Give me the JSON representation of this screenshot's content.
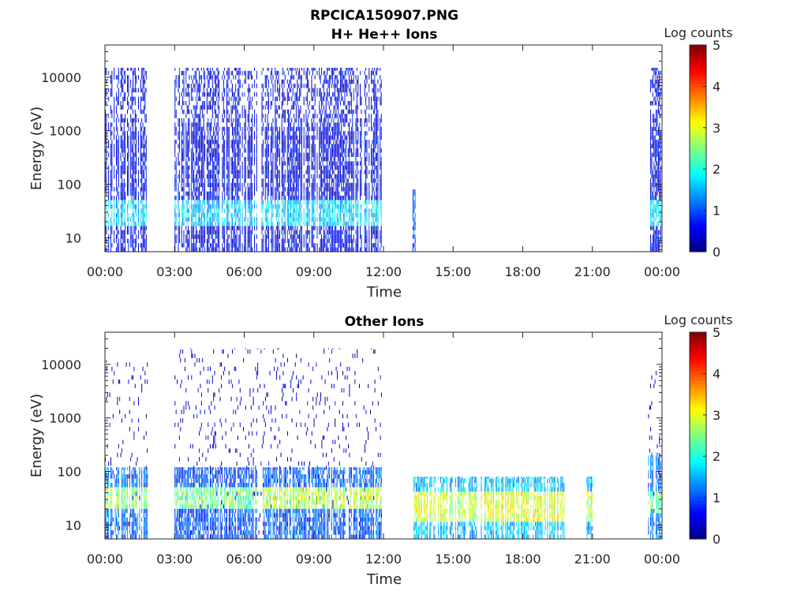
{
  "figure": {
    "title": "RPCICA150907.PNG"
  },
  "chart_data": [
    {
      "type": "heatmap",
      "title": "H+ He++ Ions",
      "xlabel": "Time",
      "ylabel": "Energy (eV)",
      "x_scale": "time",
      "x_range_hours": [
        0,
        24
      ],
      "x_ticks": [
        "00:00",
        "03:00",
        "06:00",
        "09:00",
        "12:00",
        "15:00",
        "18:00",
        "21:00",
        "00:00"
      ],
      "y_scale": "log",
      "y_range": [
        5.5,
        40000
      ],
      "y_ticks": [
        "10",
        "100",
        "1000",
        "10000"
      ],
      "colorbar": {
        "label": "Log counts",
        "range": [
          0,
          5
        ],
        "ticks": [
          "0",
          "1",
          "2",
          "3",
          "4",
          "5"
        ],
        "colormap": "jet"
      },
      "regions": [
        {
          "t0": 0.0,
          "t1": 1.85,
          "emax": 15000,
          "level": 0.55,
          "peak_level": 1.7,
          "peak_energy": [
            15,
            45
          ]
        },
        {
          "t0": 3.0,
          "t1": 6.55,
          "emax": 15000,
          "level": 0.55,
          "peak_level": 1.6,
          "peak_energy": [
            15,
            45
          ]
        },
        {
          "t0": 6.7,
          "t1": 11.9,
          "emax": 15000,
          "level": 0.55,
          "peak_level": 1.7,
          "peak_energy": [
            15,
            45
          ]
        },
        {
          "t0": 13.25,
          "t1": 13.35,
          "emax": 80,
          "level": 1.0,
          "peak_level": 1.2,
          "peak_energy": [
            10,
            40
          ]
        },
        {
          "t0": 23.4,
          "t1": 23.95,
          "emax": 15000,
          "level": 0.6,
          "peak_level": 1.8,
          "peak_energy": [
            15,
            45
          ]
        }
      ]
    },
    {
      "type": "heatmap",
      "title": "Other Ions",
      "xlabel": "Time",
      "ylabel": "Energy (eV)",
      "x_scale": "time",
      "x_range_hours": [
        0,
        24
      ],
      "x_ticks": [
        "00:00",
        "03:00",
        "06:00",
        "09:00",
        "12:00",
        "15:00",
        "18:00",
        "21:00",
        "00:00"
      ],
      "y_scale": "log",
      "y_range": [
        5.5,
        40000
      ],
      "y_ticks": [
        "10",
        "100",
        "1000",
        "10000"
      ],
      "colorbar": {
        "label": "Log counts",
        "range": [
          0,
          5
        ],
        "ticks": [
          "0",
          "1",
          "2",
          "3",
          "4",
          "5"
        ],
        "colormap": "jet"
      },
      "regions": [
        {
          "t0": 0.0,
          "t1": 1.85,
          "emax": 120,
          "level": 1.2,
          "peak_level": 2.6,
          "peak_energy": [
            20,
            45
          ]
        },
        {
          "t0": 3.0,
          "t1": 6.55,
          "emax": 120,
          "level": 1.0,
          "peak_level": 2.4,
          "peak_energy": [
            20,
            45
          ]
        },
        {
          "t0": 6.7,
          "t1": 11.9,
          "emax": 120,
          "level": 1.1,
          "peak_level": 2.8,
          "peak_energy": [
            20,
            45
          ]
        },
        {
          "t0": 13.3,
          "t1": 14.75,
          "emax": 80,
          "level": 1.6,
          "peak_level": 2.9,
          "peak_energy": [
            10,
            40
          ]
        },
        {
          "t0": 14.85,
          "t1": 16.0,
          "emax": 80,
          "level": 1.5,
          "peak_level": 2.7,
          "peak_energy": [
            10,
            40
          ]
        },
        {
          "t0": 16.15,
          "t1": 19.8,
          "emax": 80,
          "level": 1.6,
          "peak_level": 3.0,
          "peak_energy": [
            10,
            40
          ]
        },
        {
          "t0": 20.75,
          "t1": 21.0,
          "emax": 80,
          "level": 1.5,
          "peak_level": 2.8,
          "peak_energy": [
            10,
            40
          ]
        },
        {
          "t0": 23.4,
          "t1": 23.95,
          "emax": 200,
          "level": 1.2,
          "peak_level": 2.3,
          "peak_energy": [
            15,
            40
          ]
        }
      ],
      "sparse_regions": [
        {
          "t0": 0.0,
          "t1": 1.85,
          "emax": 12000,
          "level": 0.35
        },
        {
          "t0": 3.0,
          "t1": 11.9,
          "emax": 20000,
          "level": 0.35
        },
        {
          "t0": 23.4,
          "t1": 23.95,
          "emax": 12000,
          "level": 0.35
        }
      ]
    }
  ]
}
